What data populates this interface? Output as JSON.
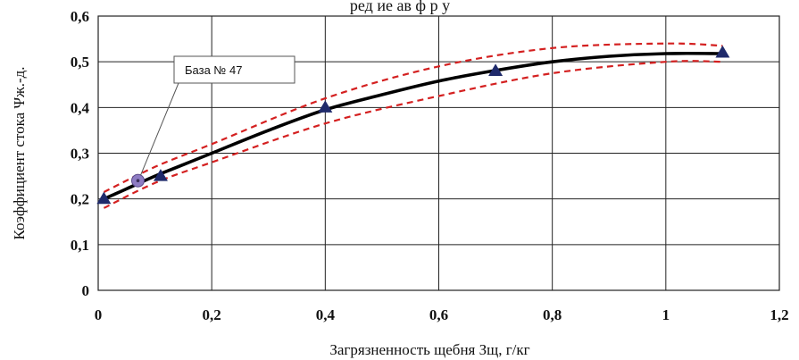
{
  "header": {
    "caption_fragment": "ред    ие ав    ф      р    у"
  },
  "chart_data": {
    "type": "scatter",
    "xlabel": "Загрязненность щебня Зщ, г/кг",
    "ylabel": "Коэффициент стока Ψж.-д.",
    "xlim": [
      0,
      1.2
    ],
    "ylim": [
      0,
      0.6
    ],
    "x_ticks": [
      "0",
      "0,2",
      "0,4",
      "0,6",
      "0,8",
      "1",
      "1,2"
    ],
    "y_ticks": [
      "0",
      "0,1",
      "0,2",
      "0,3",
      "0,4",
      "0,5",
      "0,6"
    ],
    "x_tick_values": [
      0,
      0.2,
      0.4,
      0.6,
      0.8,
      1.0,
      1.2
    ],
    "y_tick_values": [
      0,
      0.1,
      0.2,
      0.3,
      0.4,
      0.5,
      0.6
    ],
    "grid": true,
    "series": [
      {
        "marker": "triangle",
        "color": "#1f2a6b",
        "x": [
          0.01,
          0.11,
          0.4,
          0.7,
          1.1
        ],
        "y": [
          0.2,
          0.25,
          0.4,
          0.48,
          0.52
        ]
      },
      {
        "marker": "circle",
        "color": "#8e7cc3",
        "x": [
          0.07
        ],
        "y": [
          0.24
        ]
      }
    ],
    "fit_curve": {
      "color": "#000000",
      "x": [
        0.01,
        0.05,
        0.1,
        0.15,
        0.2,
        0.3,
        0.4,
        0.5,
        0.6,
        0.7,
        0.8,
        0.9,
        1.0,
        1.1
      ],
      "y": [
        0.2,
        0.222,
        0.25,
        0.275,
        0.3,
        0.35,
        0.395,
        0.428,
        0.458,
        0.481,
        0.5,
        0.512,
        0.518,
        0.518
      ]
    },
    "confidence_bands": {
      "color": "#d42020",
      "style": "dashed",
      "upper": {
        "x": [
          0.01,
          0.1,
          0.2,
          0.4,
          0.6,
          0.8,
          1.0,
          1.1
        ],
        "y": [
          0.215,
          0.27,
          0.32,
          0.42,
          0.49,
          0.53,
          0.54,
          0.535
        ]
      },
      "lower": {
        "x": [
          0.01,
          0.1,
          0.2,
          0.4,
          0.6,
          0.8,
          1.0,
          1.1
        ],
        "y": [
          0.18,
          0.235,
          0.28,
          0.365,
          0.425,
          0.475,
          0.5,
          0.5
        ]
      }
    },
    "annotation": {
      "text": "База № 47",
      "target_x": 0.07,
      "target_y": 0.24
    }
  }
}
